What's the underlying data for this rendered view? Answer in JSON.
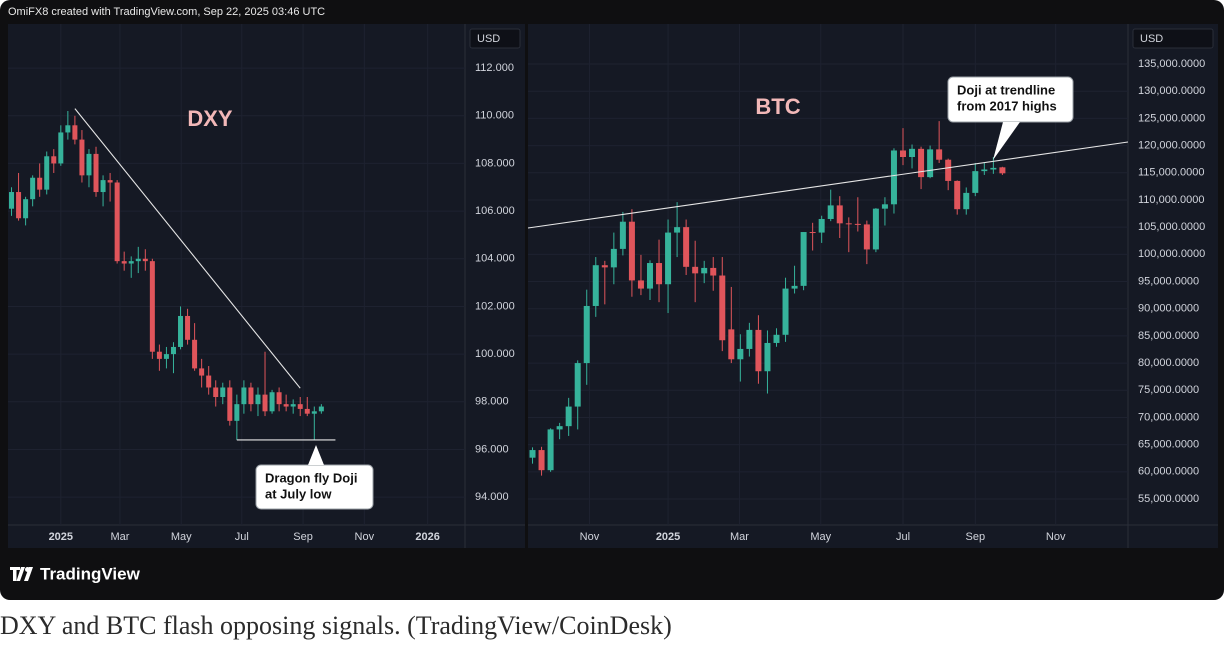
{
  "header": "OmiFX8 created with TradingView.com, Sep 22, 2025 03:46 UTC",
  "chart_data": [
    {
      "type": "candlestick",
      "title": "DXY",
      "currency": "USD",
      "up_color": "#36b39b",
      "down_color": "#e0555b",
      "grid": true,
      "x": [
        -7,
        -6,
        -5,
        -4,
        -3,
        -2,
        -1,
        0,
        1,
        2,
        3,
        4,
        5,
        6,
        7,
        8,
        9,
        10,
        11,
        12,
        13,
        14,
        15,
        16,
        17,
        18,
        19,
        20,
        21,
        22,
        23,
        24,
        25,
        26,
        27,
        28,
        29,
        30,
        31,
        32,
        33,
        34,
        35,
        36,
        37
      ],
      "open": [
        106.1,
        106.8,
        105.7,
        106.5,
        107.4,
        106.9,
        108.3,
        108.0,
        109.3,
        109.6,
        109.0,
        107.5,
        108.4,
        106.8,
        107.3,
        107.2,
        103.9,
        103.8,
        103.9,
        104.0,
        103.9,
        100.1,
        99.8,
        100.0,
        100.3,
        101.6,
        100.6,
        99.4,
        99.1,
        98.6,
        98.2,
        98.6,
        97.2,
        97.9,
        98.6,
        97.9,
        98.3,
        97.6,
        98.4,
        97.9,
        97.8,
        97.9,
        97.7,
        97.5,
        97.6
      ],
      "high": [
        107.0,
        107.6,
        106.6,
        107.5,
        108.0,
        108.5,
        108.6,
        109.6,
        110.2,
        110.0,
        109.4,
        108.6,
        108.7,
        107.5,
        107.6,
        107.3,
        104.3,
        104.1,
        104.5,
        104.4,
        104.0,
        100.4,
        100.3,
        100.5,
        102.0,
        101.9,
        101.3,
        99.8,
        99.5,
        98.9,
        98.8,
        98.9,
        98.3,
        98.9,
        98.8,
        98.6,
        100.1,
        98.5,
        98.6,
        98.3,
        98.1,
        98.2,
        98.2,
        97.8,
        97.9
      ],
      "low": [
        105.8,
        105.6,
        105.4,
        106.2,
        106.6,
        106.7,
        107.6,
        107.9,
        109.0,
        108.8,
        107.2,
        107.0,
        106.6,
        106.2,
        106.4,
        103.8,
        103.5,
        103.2,
        103.4,
        103.5,
        99.8,
        99.3,
        99.4,
        99.2,
        100.2,
        100.4,
        99.3,
        98.6,
        98.3,
        97.8,
        97.9,
        97.0,
        96.4,
        97.5,
        97.6,
        97.4,
        97.4,
        97.5,
        97.6,
        97.6,
        97.5,
        97.4,
        97.4,
        96.4,
        97.5
      ],
      "close": [
        106.8,
        105.7,
        106.5,
        107.4,
        106.9,
        108.3,
        108.0,
        109.3,
        109.6,
        109.0,
        107.5,
        108.4,
        106.8,
        107.3,
        107.2,
        103.9,
        103.8,
        103.9,
        104.0,
        103.9,
        100.1,
        99.8,
        100.0,
        100.3,
        101.6,
        100.6,
        99.4,
        99.1,
        98.6,
        98.2,
        98.6,
        97.2,
        97.9,
        98.6,
        97.9,
        98.3,
        97.6,
        98.4,
        97.9,
        97.8,
        97.9,
        97.7,
        97.5,
        97.6,
        97.8
      ],
      "xlim": [
        -7.5,
        57.4
      ],
      "xticks": [
        {
          "value": 0,
          "label": "2025"
        },
        {
          "value": 8.4,
          "label": "Mar"
        },
        {
          "value": 17.1,
          "label": "May"
        },
        {
          "value": 25.7,
          "label": "Jul"
        },
        {
          "value": 34.4,
          "label": "Sep"
        },
        {
          "value": 43.1,
          "label": "Nov"
        },
        {
          "value": 52.1,
          "label": "2026"
        }
      ],
      "ylim": [
        92.83,
        113.85
      ],
      "yticks": [
        {
          "value": 94,
          "label": "94.000"
        },
        {
          "value": 96,
          "label": "96.000"
        },
        {
          "value": 98,
          "label": "98.000"
        },
        {
          "value": 100,
          "label": "100.000"
        },
        {
          "value": 102,
          "label": "102.000"
        },
        {
          "value": 104,
          "label": "104.000"
        },
        {
          "value": 106,
          "label": "106.000"
        },
        {
          "value": 108,
          "label": "108.000"
        },
        {
          "value": 110,
          "label": "110.000"
        },
        {
          "value": 112,
          "label": "112.000"
        }
      ],
      "trendlines": [
        {
          "x": [
            2,
            34
          ],
          "y": [
            110.3,
            98.57
          ]
        },
        {
          "x": [
            25,
            39
          ],
          "y": [
            96.4,
            96.4
          ]
        }
      ],
      "annotation": {
        "lines": [
          "Dragon fly Doji",
          "at July low"
        ]
      }
    },
    {
      "type": "candlestick",
      "title": "BTC",
      "currency": "USD",
      "up_color": "#36b39b",
      "down_color": "#e0555b",
      "grid": true,
      "x": [
        -15,
        -14,
        -13,
        -12,
        -11,
        -10,
        -9,
        -8,
        -7,
        -6,
        -5,
        -4,
        -3,
        -2,
        -1,
        0,
        1,
        2,
        3,
        4,
        5,
        6,
        7,
        8,
        9,
        10,
        11,
        12,
        13,
        14,
        15,
        16,
        17,
        18,
        19,
        20,
        21,
        22,
        23,
        24,
        25,
        26,
        27,
        28,
        29,
        30,
        31,
        32,
        33,
        34,
        35,
        36,
        37
      ],
      "open": [
        62600,
        64000,
        60300,
        67800,
        68400,
        72000,
        80000,
        90500,
        98000,
        97600,
        101000,
        106000,
        95200,
        93700,
        98400,
        94500,
        104000,
        105000,
        97700,
        96500,
        97500,
        96100,
        86200,
        80700,
        82600,
        86100,
        78500,
        83700,
        85200,
        93700,
        94200,
        104100,
        104000,
        106500,
        109000,
        105700,
        105600,
        105500,
        100900,
        108400,
        109200,
        119100,
        117900,
        119400,
        114200,
        119300,
        117400,
        113500,
        108300,
        111300,
        115300,
        115600,
        116000
      ],
      "high": [
        64500,
        64600,
        68000,
        69000,
        73600,
        80500,
        93500,
        99500,
        98800,
        104000,
        107800,
        108300,
        99900,
        98900,
        102700,
        106400,
        109600,
        106400,
        102500,
        98800,
        99500,
        99500,
        94000,
        85300,
        87400,
        88800,
        86000,
        86400,
        95700,
        97900,
        104100,
        105800,
        107100,
        111900,
        110700,
        106800,
        110500,
        106200,
        108500,
        110500,
        119500,
        123200,
        120200,
        119800,
        120000,
        124500,
        117600,
        113600,
        112300,
        116800,
        116800,
        117900,
        116100
      ],
      "low": [
        61500,
        59300,
        60000,
        66000,
        66600,
        67800,
        76000,
        88500,
        90800,
        94500,
        99800,
        92200,
        92500,
        91600,
        91200,
        89200,
        99500,
        96200,
        91200,
        94700,
        93300,
        82200,
        80000,
        76600,
        81200,
        76200,
        74400,
        83000,
        83900,
        92800,
        93400,
        100700,
        102100,
        106100,
        103000,
        100400,
        104200,
        98200,
        100400,
        105300,
        107500,
        116400,
        115800,
        112000,
        114000,
        116800,
        111800,
        107300,
        107300,
        110700,
        114600,
        114800,
        114600
      ],
      "close": [
        64000,
        60300,
        67800,
        68400,
        72000,
        80000,
        90500,
        98000,
        97600,
        101000,
        106000,
        95200,
        93700,
        98400,
        94500,
        104000,
        105000,
        97700,
        96500,
        97500,
        96100,
        84200,
        80700,
        82600,
        86100,
        78500,
        83700,
        85200,
        93700,
        94200,
        104100,
        104000,
        106500,
        109000,
        105700,
        105600,
        105500,
        100900,
        108400,
        109200,
        119100,
        117900,
        119400,
        114200,
        119300,
        117400,
        113500,
        108300,
        111300,
        115300,
        115600,
        115900,
        114900
      ],
      "xlim": [
        -15.5,
        50.9
      ],
      "xticks": [
        {
          "value": -8.7,
          "label": "Nov"
        },
        {
          "value": 0,
          "label": "2025"
        },
        {
          "value": 7.9,
          "label": "Mar"
        },
        {
          "value": 16.9,
          "label": "May"
        },
        {
          "value": 26,
          "label": "Jul"
        },
        {
          "value": 34,
          "label": "Sep"
        },
        {
          "value": 42.9,
          "label": "Nov"
        }
      ],
      "ylim": [
        50220,
        142360
      ],
      "yticks": [
        {
          "value": 55000,
          "label": "55,000.0000"
        },
        {
          "value": 60000,
          "label": "60,000.0000"
        },
        {
          "value": 65000,
          "label": "65,000.0000"
        },
        {
          "value": 70000,
          "label": "70,000.0000"
        },
        {
          "value": 75000,
          "label": "75,000.0000"
        },
        {
          "value": 80000,
          "label": "80,000.0000"
        },
        {
          "value": 85000,
          "label": "85,000.0000"
        },
        {
          "value": 90000,
          "label": "90,000.0000"
        },
        {
          "value": 95000,
          "label": "95,000.0000"
        },
        {
          "value": 100000,
          "label": "100,000.0000"
        },
        {
          "value": 105000,
          "label": "105,000.0000"
        },
        {
          "value": 110000,
          "label": "110,000.0000"
        },
        {
          "value": 115000,
          "label": "115,000.0000"
        },
        {
          "value": 120000,
          "label": "120,000.0000"
        },
        {
          "value": 125000,
          "label": "125,000.0000"
        },
        {
          "value": 130000,
          "label": "130,000.0000"
        },
        {
          "value": 135000,
          "label": "135,000.0000"
        }
      ],
      "trendlines": [
        {
          "x": [
            -15.5,
            50.9
          ],
          "y": [
            104840,
            120660
          ]
        }
      ],
      "annotation": {
        "lines": [
          "Doji at trendline",
          "from 2017 highs"
        ]
      }
    }
  ],
  "logo": "TradingView",
  "caption": "DXY and BTC flash opposing signals. (TradingView/CoinDesk)"
}
